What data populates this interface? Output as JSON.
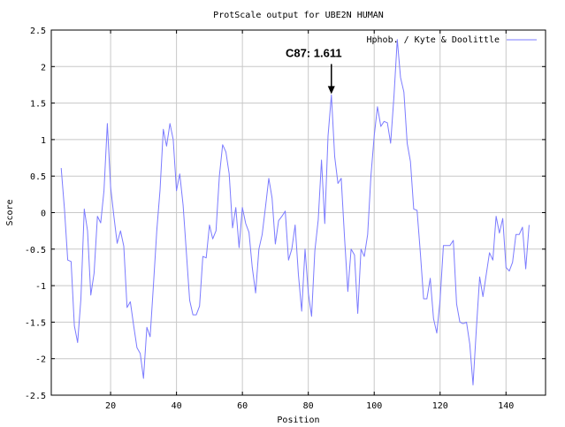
{
  "chart_data": {
    "type": "line",
    "title": "ProtScale output for UBE2N HUMAN",
    "xlabel": "Position",
    "ylabel": "Score",
    "xlim": [
      2,
      152
    ],
    "ylim": [
      -2.5,
      2.5
    ],
    "x_ticks": [
      20,
      40,
      60,
      80,
      100,
      120,
      140
    ],
    "y_ticks": [
      -2.5,
      -2,
      -1.5,
      -1,
      -0.5,
      0,
      0.5,
      1,
      1.5,
      2,
      2.5
    ],
    "x_tick_labels": [
      "20",
      "40",
      "60",
      "80",
      "100",
      "120",
      "140"
    ],
    "y_tick_labels": [
      "-2.5",
      "-2",
      "-1.5",
      "-1",
      "-0.5",
      "0",
      "0.5",
      "1",
      "1.5",
      "2",
      "2.5"
    ],
    "grid": true,
    "legend_position": "top-right",
    "colors": {
      "series": "#7b7bff",
      "grid": "#c8c8c8",
      "axis": "#000000"
    },
    "series": [
      {
        "name": "Hphob. / Kyte & Doolittle",
        "x": [
          5,
          6,
          7,
          8,
          9,
          10,
          11,
          12,
          13,
          14,
          15,
          16,
          17,
          18,
          19,
          20,
          21,
          22,
          23,
          24,
          25,
          26,
          27,
          28,
          29,
          30,
          31,
          32,
          33,
          34,
          35,
          36,
          37,
          38,
          39,
          40,
          41,
          42,
          43,
          44,
          45,
          46,
          47,
          48,
          49,
          50,
          51,
          52,
          53,
          54,
          55,
          56,
          57,
          58,
          59,
          60,
          61,
          62,
          63,
          64,
          65,
          66,
          67,
          68,
          69,
          70,
          71,
          72,
          73,
          74,
          75,
          76,
          77,
          78,
          79,
          80,
          81,
          82,
          83,
          84,
          85,
          86,
          87,
          88,
          89,
          90,
          91,
          92,
          93,
          94,
          95,
          96,
          97,
          98,
          99,
          100,
          101,
          102,
          103,
          104,
          105,
          106,
          107,
          108,
          109,
          110,
          111,
          112,
          113,
          114,
          115,
          116,
          117,
          118,
          119,
          120,
          121,
          122,
          123,
          124,
          125,
          126,
          127,
          128,
          129,
          130,
          131,
          132,
          133,
          134,
          135,
          136,
          137,
          138,
          139,
          140,
          141,
          142,
          143,
          144,
          145,
          146,
          147
        ],
        "y": [
          0.61,
          0.05,
          -0.65,
          -0.67,
          -1.55,
          -1.78,
          -1.18,
          0.05,
          -0.25,
          -1.13,
          -0.83,
          -0.05,
          -0.14,
          0.3,
          1.22,
          0.35,
          -0.05,
          -0.42,
          -0.25,
          -0.46,
          -1.3,
          -1.22,
          -1.55,
          -1.85,
          -1.93,
          -2.27,
          -1.57,
          -1.7,
          -1.0,
          -0.25,
          0.31,
          1.14,
          0.91,
          1.22,
          1.0,
          0.3,
          0.53,
          0.1,
          -0.55,
          -1.2,
          -1.4,
          -1.4,
          -1.28,
          -0.6,
          -0.62,
          -0.17,
          -0.36,
          -0.25,
          0.5,
          0.93,
          0.83,
          0.53,
          -0.21,
          0.07,
          -0.48,
          0.07,
          -0.15,
          -0.27,
          -0.75,
          -1.1,
          -0.5,
          -0.3,
          0.07,
          0.47,
          0.2,
          -0.43,
          -0.11,
          -0.05,
          0.02,
          -0.65,
          -0.5,
          -0.17,
          -0.85,
          -1.35,
          -0.5,
          -1.1,
          -1.42,
          -0.52,
          -0.1,
          0.72,
          -0.15,
          1.05,
          1.611,
          0.77,
          0.4,
          0.47,
          -0.35,
          -1.08,
          -0.5,
          -0.58,
          -1.38,
          -0.5,
          -0.6,
          -0.3,
          0.5,
          1.05,
          1.45,
          1.18,
          1.25,
          1.23,
          0.95,
          1.6,
          2.37,
          1.85,
          1.65,
          0.95,
          0.7,
          0.05,
          0.03,
          -0.55,
          -1.18,
          -1.18,
          -0.9,
          -1.45,
          -1.65,
          -1.2,
          -0.45,
          -0.45,
          -0.45,
          -0.38,
          -1.25,
          -1.5,
          -1.52,
          -1.5,
          -1.8,
          -2.36,
          -1.6,
          -0.88,
          -1.15,
          -0.85,
          -0.55,
          -0.65,
          -0.05,
          -0.28,
          -0.08,
          -0.75,
          -0.8,
          -0.68,
          -0.3,
          -0.3,
          -0.2,
          -0.77,
          -0.17
        ]
      }
    ],
    "annotations": [
      {
        "text": "C87: 1.611",
        "x": 87,
        "y": 1.611
      }
    ]
  }
}
